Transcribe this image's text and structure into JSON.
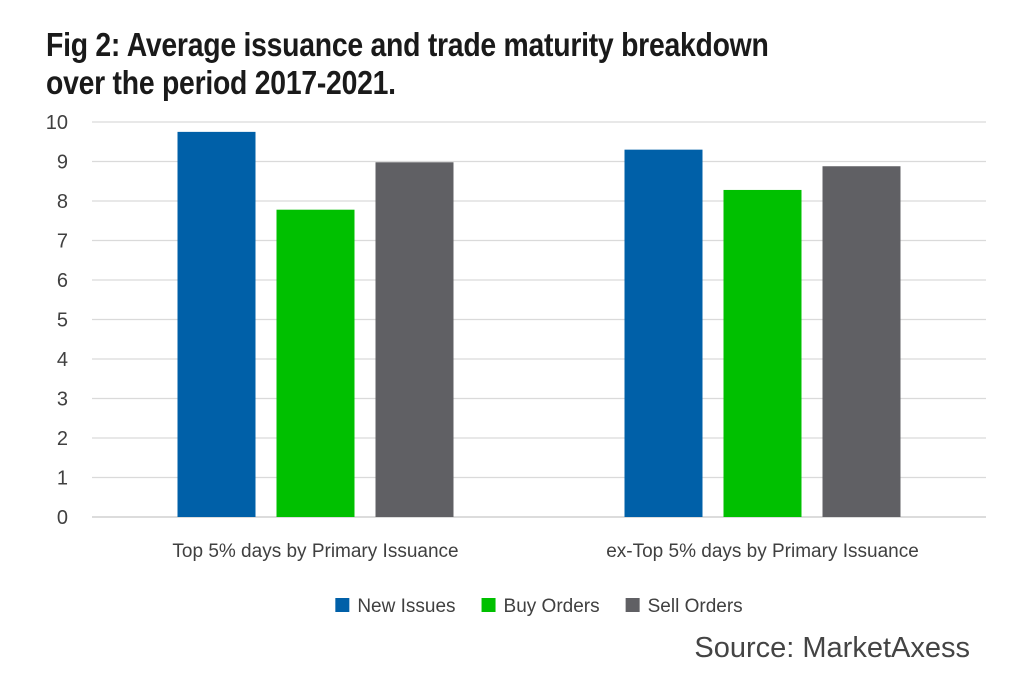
{
  "title_lines": [
    "Fig 2: Average issuance and trade maturity breakdown",
    "over the period 2017-2021."
  ],
  "source": "Source: MarketAxess",
  "chart_data": {
    "type": "bar",
    "categories": [
      "Top 5% days by Primary Issuance",
      "ex-Top 5% days by Primary Issuance"
    ],
    "series": [
      {
        "name": "New Issues",
        "values": [
          9.75,
          9.3
        ],
        "color": "#0060A8"
      },
      {
        "name": "Buy Orders",
        "values": [
          7.78,
          8.28
        ],
        "color": "#00C000"
      },
      {
        "name": "Sell Orders",
        "values": [
          8.98,
          8.88
        ],
        "color": "#606064"
      }
    ],
    "ylim": [
      0,
      10
    ],
    "yticks": [
      0,
      1,
      2,
      3,
      4,
      5,
      6,
      7,
      8,
      9,
      10
    ],
    "grid": true,
    "legend_position": "bottom"
  }
}
